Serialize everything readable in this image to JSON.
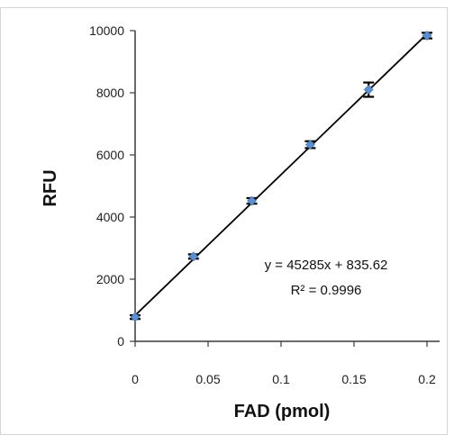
{
  "chart_data": {
    "type": "scatter",
    "title": "",
    "xlabel": "FAD (pmol)",
    "ylabel": "RFU",
    "xlim": [
      0,
      0.2
    ],
    "ylim": [
      0,
      10000
    ],
    "x_ticks": [
      "0",
      "0.05",
      "0.1",
      "0.15",
      "0.2"
    ],
    "x_tick_values": [
      0,
      0.05,
      0.1,
      0.15,
      0.2
    ],
    "y_ticks": [
      "0",
      "2000",
      "4000",
      "6000",
      "8000",
      "10000"
    ],
    "y_tick_values": [
      0,
      2000,
      4000,
      6000,
      8000,
      10000
    ],
    "grid": false,
    "legend": "none",
    "series": [
      {
        "x": [
          0,
          0.04,
          0.08,
          0.12,
          0.16,
          0.2
        ],
        "y": [
          780,
          2730,
          4520,
          6330,
          8100,
          9840
        ],
        "error": [
          60,
          70,
          90,
          110,
          230,
          90
        ],
        "marker": "diamond",
        "color": "#5b8fd0"
      }
    ],
    "trendline": {
      "slope": 45285,
      "intercept": 835.62,
      "color": "#000000"
    },
    "annotations": [
      "y = 45285x + 835.62",
      "R² = 0.9996"
    ]
  }
}
